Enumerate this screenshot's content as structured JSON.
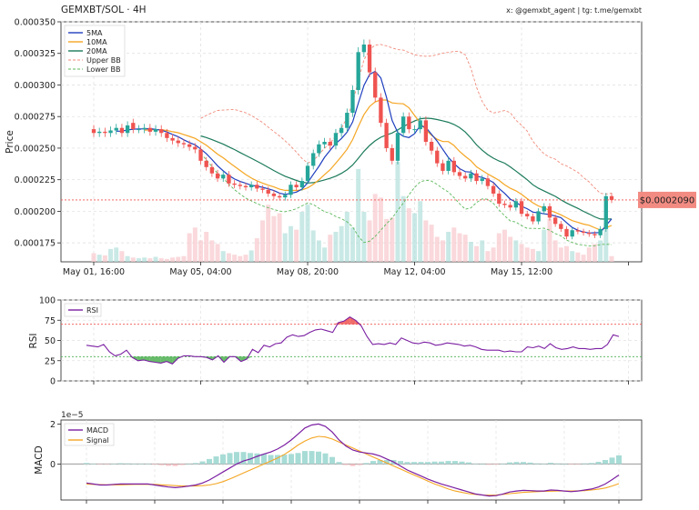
{
  "header": {
    "title": "GEMXBT/SOL · 4H",
    "credit": "x: @gemxbt_agent | tg: t.me/gemxbt"
  },
  "colors": {
    "up": "#26a69a",
    "down": "#ef5350",
    "ma5": "#1f3fbf",
    "ma10": "#f5a623",
    "ma20": "#1b7a5a",
    "bb": "#f08a7a",
    "bb_low": "#5cb85c",
    "rsi": "#7b1fa2",
    "macd": "#7b1fa2",
    "signal": "#f5a623",
    "price_badge": "#f28b82"
  },
  "chart_data": [
    {
      "id": "price",
      "type": "candlestick",
      "ylabel": "Price",
      "ylim": [
        0.00016,
        0.00035
      ],
      "yticks": [
        "0.000175",
        "0.000200",
        "0.000225",
        "0.000250",
        "0.000275",
        "0.000300",
        "0.000325",
        "0.000350"
      ],
      "xticks": [
        "May 01, 16:00",
        "May 05, 04:00",
        "May 08, 20:00",
        "May 12, 04:00",
        "May 15, 12:00"
      ],
      "current_price": 0.000209,
      "current_price_label": "$0.0002090",
      "legend": [
        "5MA",
        "10MA",
        "20MA",
        "Upper BB",
        "Lower BB"
      ],
      "close": [
        0.000262,
        0.000263,
        0.000262,
        0.000264,
        0.000266,
        0.000262,
        0.000268,
        0.000265,
        0.000265,
        0.000266,
        0.000263,
        0.000265,
        0.000262,
        0.000258,
        0.000256,
        0.000254,
        0.000253,
        0.000251,
        0.000249,
        0.00024,
        0.000235,
        0.00023,
        0.000226,
        0.000229,
        0.000222,
        0.000221,
        0.00022,
        0.000219,
        0.000221,
        0.000218,
        0.000217,
        0.000214,
        0.000212,
        0.000211,
        0.000213,
        0.000221,
        0.000219,
        0.000224,
        0.000236,
        0.000246,
        0.000253,
        0.000255,
        0.000252,
        0.000262,
        0.000266,
        0.000278,
        0.000296,
        0.000326,
        0.000332,
        0.00031,
        0.00029,
        0.00027,
        0.00025,
        0.00024,
        0.000262,
        0.000275,
        0.000265,
        0.000265,
        0.000272,
        0.000255,
        0.000248,
        0.000238,
        0.000232,
        0.00024,
        0.000231,
        0.000228,
        0.000226,
        0.00023,
        0.000224,
        0.000226,
        0.00022,
        0.000214,
        0.000206,
        0.000205,
        0.000203,
        0.000208,
        0.000198,
        0.000196,
        0.000192,
        0.0002,
        0.000204,
        0.000195,
        0.00019,
        0.000186,
        0.00018,
        0.000185,
        0.000184,
        0.000183,
        0.000182,
        0.000181,
        0.000186,
        0.000212,
        0.000209
      ],
      "open": [
        0.000265,
        0.000262,
        0.000263,
        0.000262,
        0.000264,
        0.000266,
        0.000262,
        0.00027,
        0.000265,
        0.000265,
        0.000266,
        0.000263,
        0.000265,
        0.000262,
        0.000258,
        0.000256,
        0.000254,
        0.000253,
        0.000251,
        0.000249,
        0.00024,
        0.000235,
        0.00023,
        0.000226,
        0.000229,
        0.000222,
        0.000221,
        0.00022,
        0.000219,
        0.000221,
        0.000218,
        0.000217,
        0.000214,
        0.000212,
        0.000211,
        0.000213,
        0.000221,
        0.000219,
        0.000224,
        0.000236,
        0.000246,
        0.000253,
        0.000255,
        0.000252,
        0.000262,
        0.000266,
        0.000278,
        0.000296,
        0.000326,
        0.000332,
        0.00031,
        0.00029,
        0.00027,
        0.00025,
        0.00024,
        0.000262,
        0.000275,
        0.000265,
        0.000265,
        0.000272,
        0.000255,
        0.000248,
        0.000238,
        0.000232,
        0.00024,
        0.000231,
        0.000228,
        0.000226,
        0.00023,
        0.000224,
        0.000226,
        0.00022,
        0.000214,
        0.000206,
        0.000205,
        0.000203,
        0.000208,
        0.000198,
        0.000196,
        0.000192,
        0.0002,
        0.000204,
        0.000195,
        0.00019,
        0.000186,
        0.00018,
        0.000185,
        0.000184,
        0.000183,
        0.000182,
        0.000181,
        0.000186,
        0.000212
      ],
      "volume": [
        0.12,
        0.1,
        0.09,
        0.18,
        0.2,
        0.15,
        0.08,
        0.06,
        0.05,
        0.06,
        0.05,
        0.07,
        0.05,
        0.04,
        0.06,
        0.07,
        0.08,
        0.4,
        0.48,
        0.3,
        0.42,
        0.3,
        0.25,
        0.15,
        0.12,
        0.1,
        0.08,
        0.1,
        0.16,
        0.33,
        0.58,
        0.8,
        0.64,
        0.68,
        0.4,
        0.5,
        0.45,
        0.7,
        0.8,
        0.44,
        0.3,
        0.2,
        0.38,
        0.42,
        0.5,
        0.7,
        0.48,
        1.3,
        0.7,
        0.58,
        0.95,
        0.9,
        0.6,
        0.62,
        1.4,
        0.92,
        0.75,
        0.68,
        0.85,
        0.58,
        0.52,
        0.35,
        0.3,
        0.42,
        0.48,
        0.4,
        0.38,
        0.28,
        0.22,
        0.3,
        0.15,
        0.2,
        0.4,
        0.45,
        0.35,
        0.3,
        0.25,
        0.2,
        0.18,
        0.15,
        0.45,
        0.6,
        0.3,
        0.2,
        0.22,
        0.15,
        0.13,
        0.1,
        0.2,
        0.25,
        0.3,
        0.55,
        0.08
      ]
    },
    {
      "id": "rsi",
      "type": "line",
      "ylabel": "RSI",
      "ylim": [
        0,
        100
      ],
      "yticks": [
        "0",
        "25",
        "50",
        "75",
        "100"
      ],
      "overbought": 70,
      "oversold": 30,
      "legend": [
        "RSI"
      ],
      "values": [
        44,
        43,
        42,
        45,
        36,
        31,
        33,
        38,
        29,
        25,
        26,
        24,
        23,
        22,
        24,
        21,
        28,
        31,
        31,
        30,
        30,
        29,
        26,
        31,
        23,
        30,
        30,
        24,
        27,
        39,
        35,
        44,
        42,
        46,
        47,
        54,
        57,
        55,
        56,
        60,
        63,
        64,
        62,
        60,
        72,
        74,
        79,
        75,
        68,
        55,
        45,
        46,
        45,
        47,
        45,
        53,
        50,
        47,
        46,
        48,
        47,
        44,
        45,
        47,
        46,
        45,
        43,
        44,
        42,
        39,
        38,
        38,
        38,
        36,
        37,
        36,
        36,
        42,
        41,
        43,
        40,
        46,
        41,
        39,
        40,
        42,
        40,
        40,
        39,
        40,
        40,
        45,
        57,
        55
      ]
    },
    {
      "id": "macd",
      "type": "line",
      "ylabel": "MACD",
      "scale_label": "1e−5",
      "ylim": [
        -1.8,
        2.2
      ],
      "yticks": [
        "0",
        "2"
      ],
      "legend": [
        "MACD",
        "Signal"
      ],
      "macd": [
        -0.95,
        -1.0,
        -1.05,
        -1.05,
        -1.02,
        -1.0,
        -1.0,
        -1.0,
        -1.0,
        -1.0,
        -1.05,
        -1.1,
        -1.15,
        -1.18,
        -1.15,
        -1.1,
        -1.05,
        -0.95,
        -0.8,
        -0.6,
        -0.4,
        -0.2,
        0.0,
        0.15,
        0.25,
        0.38,
        0.5,
        0.6,
        0.75,
        0.95,
        1.2,
        1.5,
        1.8,
        1.95,
        2.0,
        1.88,
        1.6,
        1.2,
        0.9,
        0.7,
        0.6,
        0.55,
        0.5,
        0.4,
        0.25,
        0.1,
        -0.1,
        -0.3,
        -0.45,
        -0.6,
        -0.75,
        -0.88,
        -1.0,
        -1.1,
        -1.2,
        -1.3,
        -1.4,
        -1.5,
        -1.55,
        -1.6,
        -1.58,
        -1.5,
        -1.4,
        -1.35,
        -1.32,
        -1.33,
        -1.35,
        -1.35,
        -1.3,
        -1.32,
        -1.35,
        -1.38,
        -1.35,
        -1.3,
        -1.25,
        -1.15,
        -1.0,
        -0.78,
        -0.55
      ],
      "signal": [
        -1.0,
        -1.02,
        -1.03,
        -1.04,
        -1.04,
        -1.04,
        -1.03,
        -1.02,
        -1.02,
        -1.02,
        -1.02,
        -1.04,
        -1.06,
        -1.08,
        -1.1,
        -1.1,
        -1.1,
        -1.08,
        -1.05,
        -0.98,
        -0.88,
        -0.75,
        -0.6,
        -0.45,
        -0.3,
        -0.15,
        0.0,
        0.15,
        0.3,
        0.48,
        0.7,
        0.95,
        1.15,
        1.3,
        1.38,
        1.35,
        1.25,
        1.1,
        0.95,
        0.8,
        0.65,
        0.5,
        0.35,
        0.2,
        0.05,
        -0.1,
        -0.25,
        -0.4,
        -0.55,
        -0.7,
        -0.85,
        -1.0,
        -1.12,
        -1.25,
        -1.35,
        -1.42,
        -1.48,
        -1.52,
        -1.55,
        -1.56,
        -1.55,
        -1.52,
        -1.48,
        -1.45,
        -1.42,
        -1.4,
        -1.38,
        -1.37,
        -1.36,
        -1.35,
        -1.35,
        -1.35,
        -1.34,
        -1.33,
        -1.3,
        -1.26,
        -1.2,
        -1.1,
        -0.98
      ]
    }
  ]
}
